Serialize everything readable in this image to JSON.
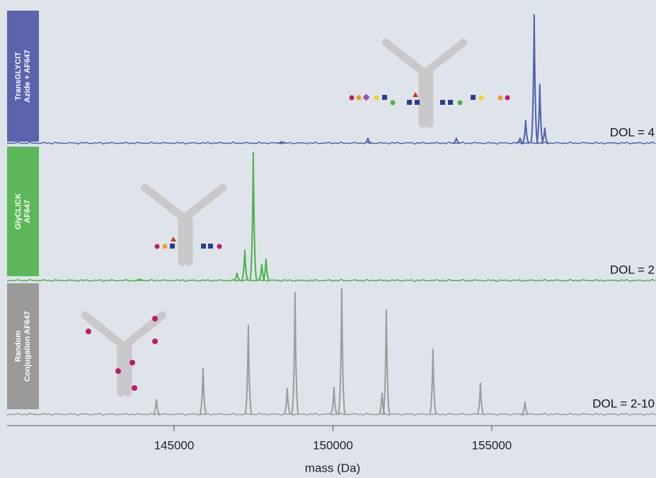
{
  "chart_data": {
    "type": "line",
    "xlabel": "mass (Da)",
    "xlim": [
      139744,
      160170
    ],
    "xticks": [
      145000,
      150000,
      155000
    ],
    "ylim": [
      0,
      100
    ],
    "series": [
      {
        "name_lines": [
          "TransGLYCIT",
          "Azide + AF647"
        ],
        "box_color": "#5b63ad",
        "color": "#5060b0",
        "annotation": "DOL = 4",
        "x": [
          148385,
          151102,
          153886,
          155890,
          156068,
          156336,
          156513,
          156669
        ],
        "values": [
          1,
          4,
          4,
          4,
          18,
          100,
          46,
          12
        ]
      },
      {
        "name_lines": [
          "GlyCLICK",
          "AF647"
        ],
        "box_color": "#5cb85a",
        "color": "#4bb14a",
        "annotation": "DOL = 2",
        "x": [
          143931,
          146982,
          147227,
          147494,
          147762,
          147895
        ],
        "values": [
          1,
          6,
          24,
          100,
          13,
          17
        ]
      },
      {
        "name_lines": [
          "Random",
          "Conjugation AF647"
        ],
        "box_color": "#9a9a9a",
        "color": "#9b9b9b",
        "annotation": "DOL = 2-10",
        "x": [
          144443,
          145913,
          147338,
          148563,
          148808,
          150033,
          150278,
          151547,
          151681,
          153150,
          154643,
          156046
        ],
        "values": [
          12,
          37,
          71,
          21,
          97,
          22,
          100,
          17,
          83,
          52,
          25,
          10
        ]
      }
    ]
  }
}
